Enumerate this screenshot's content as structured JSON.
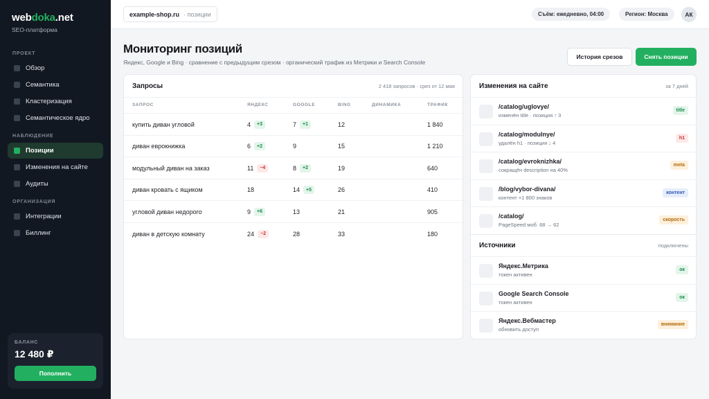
{
  "sidebar": {
    "logo": {
      "part1": "web",
      "part2": "doka",
      "part3": ".net"
    },
    "subtitle": "SEO-платформа",
    "sections": {
      "project": "ПРОЕКТ",
      "monitoring": "НАБЛЮДЕНИЕ",
      "organization": "ОРГАНИЗАЦИЯ"
    },
    "items": [
      {
        "label": "Обзор"
      },
      {
        "label": "Семантика"
      },
      {
        "label": "Кластеризация"
      },
      {
        "label": "Семантическое ядро"
      },
      {
        "label": "Позиции"
      },
      {
        "label": "Изменения на сайте"
      },
      {
        "label": "Аудиты"
      },
      {
        "label": "Интеграции"
      },
      {
        "label": "Биллинг"
      }
    ],
    "balance": {
      "label": "БАЛАНС",
      "value": "12 480 ₽",
      "button": "Пополнить"
    }
  },
  "topbar": {
    "domain": "example-shop.ru",
    "section": "· позиции",
    "schedule": "Съём: ежедневно, 04:00",
    "region": "Регион: Москва",
    "avatar": "АК"
  },
  "header": {
    "title": "Мониторинг позиций",
    "subtitle": "Яндекс, Google и Bing · сравнение с предыдущим срезом · органический трафик из Метрики и Search Console",
    "history_button": "История срезов",
    "snapshot_button": "Снять позиции"
  },
  "queries": {
    "title": "Запросы",
    "meta": "2 418 запросов · срез от 12 мая",
    "columns": [
      "ЗАПРОС",
      "ЯНДЕКС",
      "GOOGLE",
      "BING",
      "ДИНАМИКА",
      "ТРАФИК"
    ],
    "rows": [
      {
        "query": "купить диван угловой",
        "yandex": "4",
        "yandex_delta": "+3",
        "yandex_dir": "up",
        "google": "7",
        "google_delta": "+1",
        "google_dir": "up",
        "bing": "12",
        "traffic": "1 840"
      },
      {
        "query": "диван еврокнижка",
        "yandex": "6",
        "yandex_delta": "+2",
        "yandex_dir": "up",
        "google": "9",
        "google_delta": "",
        "google_dir": "",
        "bing": "15",
        "traffic": "1 210"
      },
      {
        "query": "модульный диван на заказ",
        "yandex": "11",
        "yandex_delta": "−4",
        "yandex_dir": "down",
        "google": "8",
        "google_delta": "+2",
        "google_dir": "up",
        "bing": "19",
        "traffic": "640"
      },
      {
        "query": "диван кровать с ящиком",
        "yandex": "18",
        "yandex_delta": "",
        "yandex_dir": "",
        "google": "14",
        "google_delta": "+5",
        "google_dir": "up",
        "bing": "26",
        "traffic": "410"
      },
      {
        "query": "угловой диван недорого",
        "yandex": "9",
        "yandex_delta": "+6",
        "yandex_dir": "up",
        "google": "13",
        "google_delta": "",
        "google_dir": "",
        "bing": "21",
        "traffic": "905"
      },
      {
        "query": "диван в детскую комнату",
        "yandex": "24",
        "yandex_delta": "−2",
        "yandex_dir": "down",
        "google": "28",
        "google_delta": "",
        "google_dir": "",
        "bing": "33",
        "traffic": "180"
      }
    ]
  },
  "changes": {
    "title": "Изменения на сайте",
    "meta": "за 7 дней",
    "items": [
      {
        "path": "/catalog/uglovye/",
        "desc": "изменён title · позиция ↑ 3",
        "tag": "title",
        "tag_color": "green"
      },
      {
        "path": "/catalog/modulnye/",
        "desc": "удалён h1 · позиция ↓ 4",
        "tag": "h1",
        "tag_color": "red"
      },
      {
        "path": "/catalog/evroknizhka/",
        "desc": "сокращён description на 40%",
        "tag": "meta",
        "tag_color": "orange"
      },
      {
        "path": "/blog/vybor-divana/",
        "desc": "контент +1 800 знаков",
        "tag": "контент",
        "tag_color": "blue"
      },
      {
        "path": "/catalog/",
        "desc": "PageSpeed моб. 68 → 62",
        "tag": "скорость",
        "tag_color": "orange"
      }
    ]
  },
  "sources": {
    "title": "Источники",
    "meta": "подключены",
    "items": [
      {
        "name": "Яндекс.Метрика",
        "desc": "токен активен",
        "status": "ок",
        "status_color": "green"
      },
      {
        "name": "Google Search Console",
        "desc": "токен активен",
        "status": "ок",
        "status_color": "green"
      },
      {
        "name": "Яндекс.Вебмастер",
        "desc": "обновить доступ",
        "status": "внимание",
        "status_color": "orange"
      }
    ]
  }
}
